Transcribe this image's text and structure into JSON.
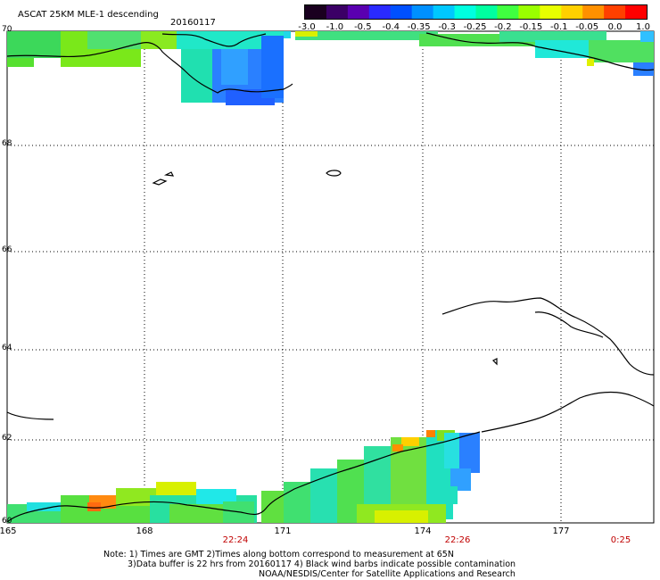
{
  "header": {
    "title": "ASCAT 25KM MLE-1 descending",
    "date": "20160117"
  },
  "colorbar": {
    "labels": [
      "-3.0",
      "-1.0",
      "-0.5",
      "-0.4",
      "-0.35",
      "-0.3",
      "-0.25",
      "-0.2",
      "-0.15",
      "-0.1",
      "-0.05",
      "0.0",
      "1.0"
    ],
    "colors": [
      "#1a001f",
      "#3b0066",
      "#5a00b0",
      "#2a2aff",
      "#0050ff",
      "#0090ff",
      "#00c8ff",
      "#00ffe0",
      "#00ffa0",
      "#40ff40",
      "#9aff00",
      "#e8ff00",
      "#ffd000",
      "#ff9000",
      "#ff4000",
      "#ff0000"
    ]
  },
  "map": {
    "lat_labels": [
      "70",
      "68",
      "66",
      "64",
      "62",
      "60"
    ],
    "lon_labels": [
      "165",
      "168",
      "171",
      "174",
      "177"
    ],
    "times": [
      "22:24",
      "22:26",
      "0:25"
    ]
  },
  "footer": {
    "line1": "Note: 1) Times are GMT 2)Times along bottom correspond to measurement at 65N",
    "line2": "3)Data buffer is 22 hrs from 20160117 4) Black wind barbs indicate possible contamination",
    "line3": "NOAA/NESDIS/Center for Satellite Applications and Research"
  }
}
